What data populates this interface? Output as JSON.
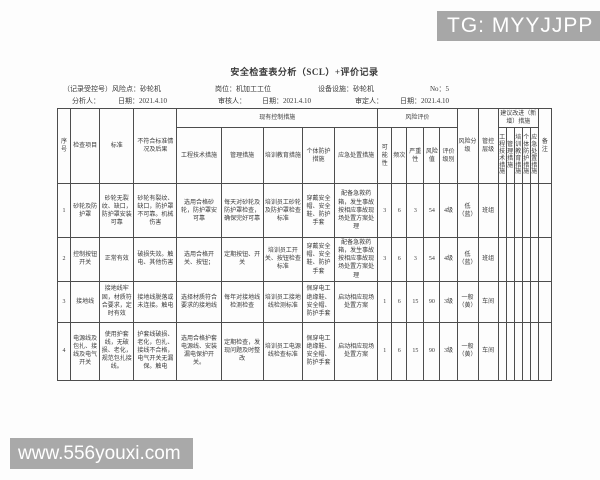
{
  "banner": {
    "text": "TG: MYYJJPP"
  },
  "watermark": {
    "text": "www.556youxi.com"
  },
  "doc": {
    "title": "安全检查表分析（SCL）+评价记录",
    "meta": {
      "control_no": "（记录受控号）风险点：砂轮机",
      "post": "岗位：机加工工位",
      "equipment": "设备设施：砂轮机",
      "no": "No：5",
      "analyst": "分析人：",
      "analyst_date": "日期：2021.4.10",
      "reviewer": "审核人：",
      "reviewer_date": "日期：2021.4.10",
      "approver": "审定人：",
      "approver_date": "日期：2021.4.10"
    },
    "table": {
      "headers": {
        "seq": "序号",
        "item": "检查项目",
        "standard": "标准",
        "nonconform": "不符合标准情况及后果",
        "existing_group": "现有控制措施",
        "risk_group": "风险评价",
        "suggest_group": "建议改进（新增）措施",
        "eng": "工程技术措施",
        "mgmt": "管理措施",
        "training": "培训教育措施",
        "ppe": "个体防护措施",
        "emergency": "应急处置措施",
        "possibility": "可能性",
        "frequency": "频次",
        "severity": "严重性",
        "risk_value": "风险值",
        "eval_level": "评价级别",
        "risk_grade": "风险分级",
        "control_level": "管控层级",
        "remark": "备注"
      },
      "rows": [
        [
          "1",
          "砂轮及防护罩",
          "砂轮无裂纹、缺口，防护罩安装可靠",
          "砂轮有裂纹、缺口，防护罩不可靠。机械伤害",
          "选用合格砂轮，防护罩安可靠",
          "每天对砂轮及防护罩检查，确保完好可靠",
          "培训员工砂轮及防护罩检查标准",
          "穿戴安全帽、安全鞋、防护手套",
          "配备急救药箱，发生事故按相应事故现场处置方案处理",
          "3",
          "6",
          "3",
          "54",
          "4级",
          "低（蓝）",
          "班组",
          "",
          "",
          "",
          "",
          "",
          ""
        ],
        [
          "2",
          "控制按钮开关",
          "正常有效",
          "破损失效。触电、其他伤害",
          "选用合格开关、按钮；",
          "定期按钮、开关",
          "培训员工开关、按钮检查标准",
          "穿戴安全帽、安全鞋、防护手套",
          "配备急救药箱，发生事故按相应事故现场处置方案处理",
          "3",
          "6",
          "3",
          "54",
          "4级",
          "低（蓝）",
          "班组",
          "",
          "",
          "",
          "",
          "",
          ""
        ],
        [
          "3",
          "接地线",
          "接地线牢固，材质符合要求，定时有效",
          "接地线脱落或未连接。触电",
          "选择材质符合要求的接地线",
          "每年对接地线检测检查",
          "培训员工接地线检测标准",
          "佩穿电工绝缘鞋、安全帽、防护手套",
          "启动相应现场处置方案",
          "1",
          "6",
          "15",
          "90",
          "3级",
          "一般（黄）",
          "车间",
          "",
          "",
          "",
          "",
          "",
          ""
        ],
        [
          "4",
          "电源线及包扎、接线及电气开关",
          "使用护套线，无破损、老化，规范包扎接线。",
          "护套线破损、老化，包扎、接线不合格，电气开关无漏保。触电",
          "选用合格护套电源线、安装漏电保护开关。",
          "定期检查，发现问题及时整改",
          "培训员工电源线检查标准",
          "佩穿电工绝缘鞋、安全帽、防护手套",
          "启动相应现场处置方案",
          "1",
          "6",
          "15",
          "90",
          "3级",
          "一般（黄）",
          "车间",
          "",
          "",
          "",
          "",
          "",
          ""
        ]
      ]
    }
  }
}
